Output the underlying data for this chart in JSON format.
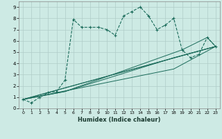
{
  "xlabel": "Humidex (Indice chaleur)",
  "bg_color": "#cdeae4",
  "grid_color": "#b0ccc8",
  "line_color": "#1a6b5a",
  "xlim": [
    -0.5,
    23.5
  ],
  "ylim": [
    0,
    9.5
  ],
  "xticks": [
    0,
    1,
    2,
    3,
    4,
    5,
    6,
    7,
    8,
    9,
    10,
    11,
    12,
    13,
    14,
    15,
    16,
    17,
    18,
    19,
    20,
    21,
    22,
    23
  ],
  "yticks": [
    0,
    1,
    2,
    3,
    4,
    5,
    6,
    7,
    8,
    9
  ],
  "main_series": {
    "x": [
      0,
      1,
      2,
      3,
      4,
      5,
      6,
      7,
      8,
      9,
      10,
      11,
      12,
      13,
      14,
      15,
      16,
      17,
      18,
      19,
      20,
      21,
      22,
      23
    ],
    "y": [
      0.8,
      0.5,
      1.0,
      1.4,
      1.5,
      2.5,
      7.9,
      7.2,
      7.2,
      7.2,
      7.0,
      6.5,
      8.2,
      8.6,
      9.0,
      8.2,
      7.0,
      7.4,
      8.0,
      5.2,
      4.5,
      4.8,
      6.3,
      5.5
    ]
  },
  "trend_lines": [
    {
      "x": [
        0,
        23
      ],
      "y": [
        0.8,
        5.5
      ]
    },
    {
      "x": [
        0,
        23
      ],
      "y": [
        0.8,
        5.5
      ]
    },
    {
      "x": [
        0,
        18,
        23
      ],
      "y": [
        0.8,
        3.5,
        5.5
      ]
    },
    {
      "x": [
        0,
        5,
        18,
        23
      ],
      "y": [
        0.8,
        1.5,
        4.5,
        5.5
      ]
    },
    {
      "x": [
        0,
        5,
        19,
        22,
        23
      ],
      "y": [
        0.8,
        1.5,
        5.2,
        6.3,
        5.5
      ]
    }
  ]
}
